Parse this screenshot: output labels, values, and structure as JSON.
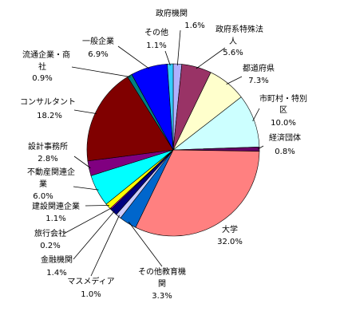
{
  "chart_data": {
    "type": "pie",
    "title": "",
    "legend": "none",
    "start_angle_deg": 90,
    "direction": "clockwise",
    "slices": [
      {
        "name": "政府機関",
        "value": 1.6,
        "percent_label": "1.6%",
        "color": "#b0b0ff"
      },
      {
        "name": "政府系特殊法人",
        "value": 5.6,
        "percent_label": "5.6%",
        "color": "#993366"
      },
      {
        "name": "都道府県",
        "value": 7.3,
        "percent_label": "7.3%",
        "color": "#ffffcc"
      },
      {
        "name": "市町村・特別区",
        "value": 10.0,
        "percent_label": "10.0%",
        "color": "#ccffff"
      },
      {
        "name": "経済団体",
        "value": 0.8,
        "percent_label": "0.8%",
        "color": "#660066"
      },
      {
        "name": "大学",
        "value": 32.0,
        "percent_label": "32.0%",
        "color": "#ff8080"
      },
      {
        "name": "その他教育機関",
        "value": 3.3,
        "percent_label": "3.3%",
        "color": "#0066cc"
      },
      {
        "name": "マスメディア",
        "value": 1.0,
        "percent_label": "1.0%",
        "color": "#ccccff"
      },
      {
        "name": "金融機関",
        "value": 1.4,
        "percent_label": "1.4%",
        "color": "#000080"
      },
      {
        "name": "旅行会社",
        "value": 0.2,
        "percent_label": "0.2%",
        "color": "#ff00ff"
      },
      {
        "name": "建設関連企業",
        "value": 1.1,
        "percent_label": "1.1%",
        "color": "#ffff00"
      },
      {
        "name": "不動産関連企業",
        "value": 6.0,
        "percent_label": "6.0%",
        "color": "#00ffff"
      },
      {
        "name": "設計事務所",
        "value": 2.8,
        "percent_label": "2.8%",
        "color": "#800080"
      },
      {
        "name": "コンサルタント",
        "value": 18.2,
        "percent_label": "18.2%",
        "color": "#800000"
      },
      {
        "name": "流通企業・商社",
        "value": 0.9,
        "percent_label": "0.9%",
        "color": "#008080"
      },
      {
        "name": "一般企業",
        "value": 6.9,
        "percent_label": "6.9%",
        "color": "#0000ff"
      },
      {
        "name": "その他",
        "value": 1.1,
        "percent_label": "1.1%",
        "color": "#33ccff"
      }
    ]
  }
}
